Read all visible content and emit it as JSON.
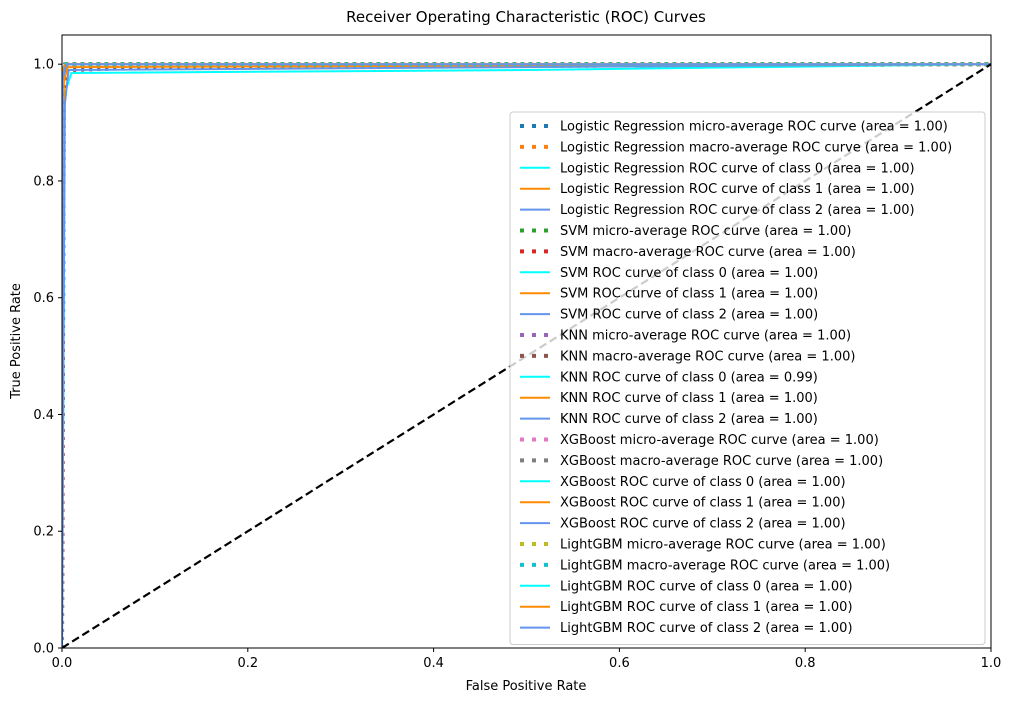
{
  "chart_data": {
    "type": "line",
    "title": "Receiver Operating Characteristic (ROC) Curves",
    "xlabel": "False Positive Rate",
    "ylabel": "True Positive Rate",
    "xlim": [
      0.0,
      1.0
    ],
    "ylim": [
      0.0,
      1.05
    ],
    "x_ticks": [
      "0.0",
      "0.2",
      "0.4",
      "0.6",
      "0.8",
      "1.0"
    ],
    "y_ticks": [
      "0.0",
      "0.2",
      "0.4",
      "0.6",
      "0.8",
      "1.0"
    ],
    "grid": false,
    "legend_position": "lower-right",
    "diagonal": {
      "x": [
        0,
        1
      ],
      "y": [
        0,
        1
      ],
      "color": "#000000",
      "style": "dashed"
    },
    "series": [
      {
        "name": "Logistic Regression micro-average ROC curve (area = 1.00)",
        "color": "#1f77b4",
        "style": "dotted",
        "x": [
          0,
          0,
          0.004,
          1
        ],
        "y": [
          0,
          0.98,
          1.0,
          1.0
        ]
      },
      {
        "name": "Logistic Regression macro-average ROC curve (area = 1.00)",
        "color": "#ff7f0e",
        "style": "dotted",
        "x": [
          0,
          0,
          0.005,
          1
        ],
        "y": [
          0,
          0.985,
          1.0,
          1.0
        ]
      },
      {
        "name": "Logistic Regression ROC curve of class 0 (area = 1.00)",
        "color": "#00ffff",
        "style": "solid",
        "x": [
          0,
          0,
          0.005,
          1
        ],
        "y": [
          0,
          0.98,
          1.0,
          1.0
        ]
      },
      {
        "name": "Logistic Regression ROC curve of class 1 (area = 1.00)",
        "color": "#ff8c00",
        "style": "solid",
        "x": [
          0,
          0,
          0.004,
          1
        ],
        "y": [
          0,
          0.99,
          1.0,
          1.0
        ]
      },
      {
        "name": "Logistic Regression ROC curve of class 2 (area = 1.00)",
        "color": "#6495ed",
        "style": "solid",
        "x": [
          0,
          0,
          0.006,
          1
        ],
        "y": [
          0,
          0.97,
          1.0,
          1.0
        ]
      },
      {
        "name": "SVM micro-average ROC curve (area = 1.00)",
        "color": "#2ca02c",
        "style": "dotted",
        "x": [
          0,
          0,
          0.003,
          1
        ],
        "y": [
          0,
          0.99,
          1.0,
          1.0
        ]
      },
      {
        "name": "SVM macro-average ROC curve (area = 1.00)",
        "color": "#d62728",
        "style": "dotted",
        "x": [
          0,
          0,
          0.004,
          1
        ],
        "y": [
          0,
          0.99,
          1.0,
          1.0
        ]
      },
      {
        "name": "SVM ROC curve of class 0 (area = 1.00)",
        "color": "#00ffff",
        "style": "solid",
        "x": [
          0,
          0,
          0.003,
          1
        ],
        "y": [
          0,
          0.99,
          1.0,
          1.0
        ]
      },
      {
        "name": "SVM ROC curve of class 1 (area = 1.00)",
        "color": "#ff8c00",
        "style": "solid",
        "x": [
          0,
          0,
          0.004,
          1
        ],
        "y": [
          0,
          0.99,
          1.0,
          1.0
        ]
      },
      {
        "name": "SVM ROC curve of class 2 (area = 1.00)",
        "color": "#6495ed",
        "style": "solid",
        "x": [
          0,
          0,
          0.005,
          1
        ],
        "y": [
          0,
          0.98,
          1.0,
          1.0
        ]
      },
      {
        "name": "KNN micro-average ROC curve (area = 1.00)",
        "color": "#9467bd",
        "style": "dotted",
        "x": [
          0,
          0.002,
          0.006,
          0.1,
          1
        ],
        "y": [
          0,
          0.96,
          0.99,
          0.995,
          1.0
        ]
      },
      {
        "name": "KNN macro-average ROC curve (area = 1.00)",
        "color": "#8c564b",
        "style": "dotted",
        "x": [
          0,
          0.002,
          0.006,
          0.1,
          1
        ],
        "y": [
          0,
          0.96,
          0.99,
          0.995,
          1.0
        ]
      },
      {
        "name": "KNN ROC curve of class 0 (area = 0.99)",
        "color": "#00ffff",
        "style": "solid",
        "x": [
          0,
          0.003,
          0.01,
          0.5,
          1
        ],
        "y": [
          0,
          0.95,
          0.985,
          0.99,
          1.0
        ]
      },
      {
        "name": "KNN ROC curve of class 1 (area = 1.00)",
        "color": "#ff8c00",
        "style": "solid",
        "x": [
          0,
          0.002,
          0.006,
          1
        ],
        "y": [
          0,
          0.97,
          0.995,
          1.0
        ]
      },
      {
        "name": "KNN ROC curve of class 2 (area = 1.00)",
        "color": "#6495ed",
        "style": "solid",
        "x": [
          0,
          0.003,
          0.007,
          1
        ],
        "y": [
          0,
          0.93,
          0.99,
          1.0
        ]
      },
      {
        "name": "XGBoost micro-average ROC curve (area = 1.00)",
        "color": "#e377c2",
        "style": "dotted",
        "x": [
          0,
          0,
          0.004,
          1
        ],
        "y": [
          0,
          0.99,
          1.0,
          1.0
        ]
      },
      {
        "name": "XGBoost macro-average ROC curve (area = 1.00)",
        "color": "#7f7f7f",
        "style": "dotted",
        "x": [
          0,
          0,
          0.004,
          1
        ],
        "y": [
          0,
          0.99,
          1.0,
          1.0
        ]
      },
      {
        "name": "XGBoost ROC curve of class 0 (area = 1.00)",
        "color": "#00ffff",
        "style": "solid",
        "x": [
          0,
          0,
          0.004,
          1
        ],
        "y": [
          0,
          0.99,
          1.0,
          1.0
        ]
      },
      {
        "name": "XGBoost ROC curve of class 1 (area = 1.00)",
        "color": "#ff8c00",
        "style": "solid",
        "x": [
          0,
          0,
          0.004,
          1
        ],
        "y": [
          0,
          0.99,
          1.0,
          1.0
        ]
      },
      {
        "name": "XGBoost ROC curve of class 2 (area = 1.00)",
        "color": "#6495ed",
        "style": "solid",
        "x": [
          0,
          0,
          0.005,
          1
        ],
        "y": [
          0,
          0.98,
          1.0,
          1.0
        ]
      },
      {
        "name": "LightGBM micro-average ROC curve (area = 1.00)",
        "color": "#bcbd22",
        "style": "dotted",
        "x": [
          0,
          0,
          0.004,
          1
        ],
        "y": [
          0,
          0.99,
          1.0,
          1.0
        ]
      },
      {
        "name": "LightGBM macro-average ROC curve (area = 1.00)",
        "color": "#17becf",
        "style": "dotted",
        "x": [
          0,
          0,
          0.004,
          1
        ],
        "y": [
          0,
          0.99,
          1.0,
          1.0
        ]
      },
      {
        "name": "LightGBM ROC curve of class 0 (area = 1.00)",
        "color": "#00ffff",
        "style": "solid",
        "x": [
          0,
          0,
          0.004,
          1
        ],
        "y": [
          0,
          0.99,
          1.0,
          1.0
        ]
      },
      {
        "name": "LightGBM ROC curve of class 1 (area = 1.00)",
        "color": "#ff8c00",
        "style": "solid",
        "x": [
          0,
          0,
          0.004,
          1
        ],
        "y": [
          0,
          0.99,
          1.0,
          1.0
        ]
      },
      {
        "name": "LightGBM ROC curve of class 2 (area = 1.00)",
        "color": "#6495ed",
        "style": "solid",
        "x": [
          0,
          0,
          0.005,
          1
        ],
        "y": [
          0,
          0.98,
          1.0,
          1.0
        ]
      }
    ]
  }
}
